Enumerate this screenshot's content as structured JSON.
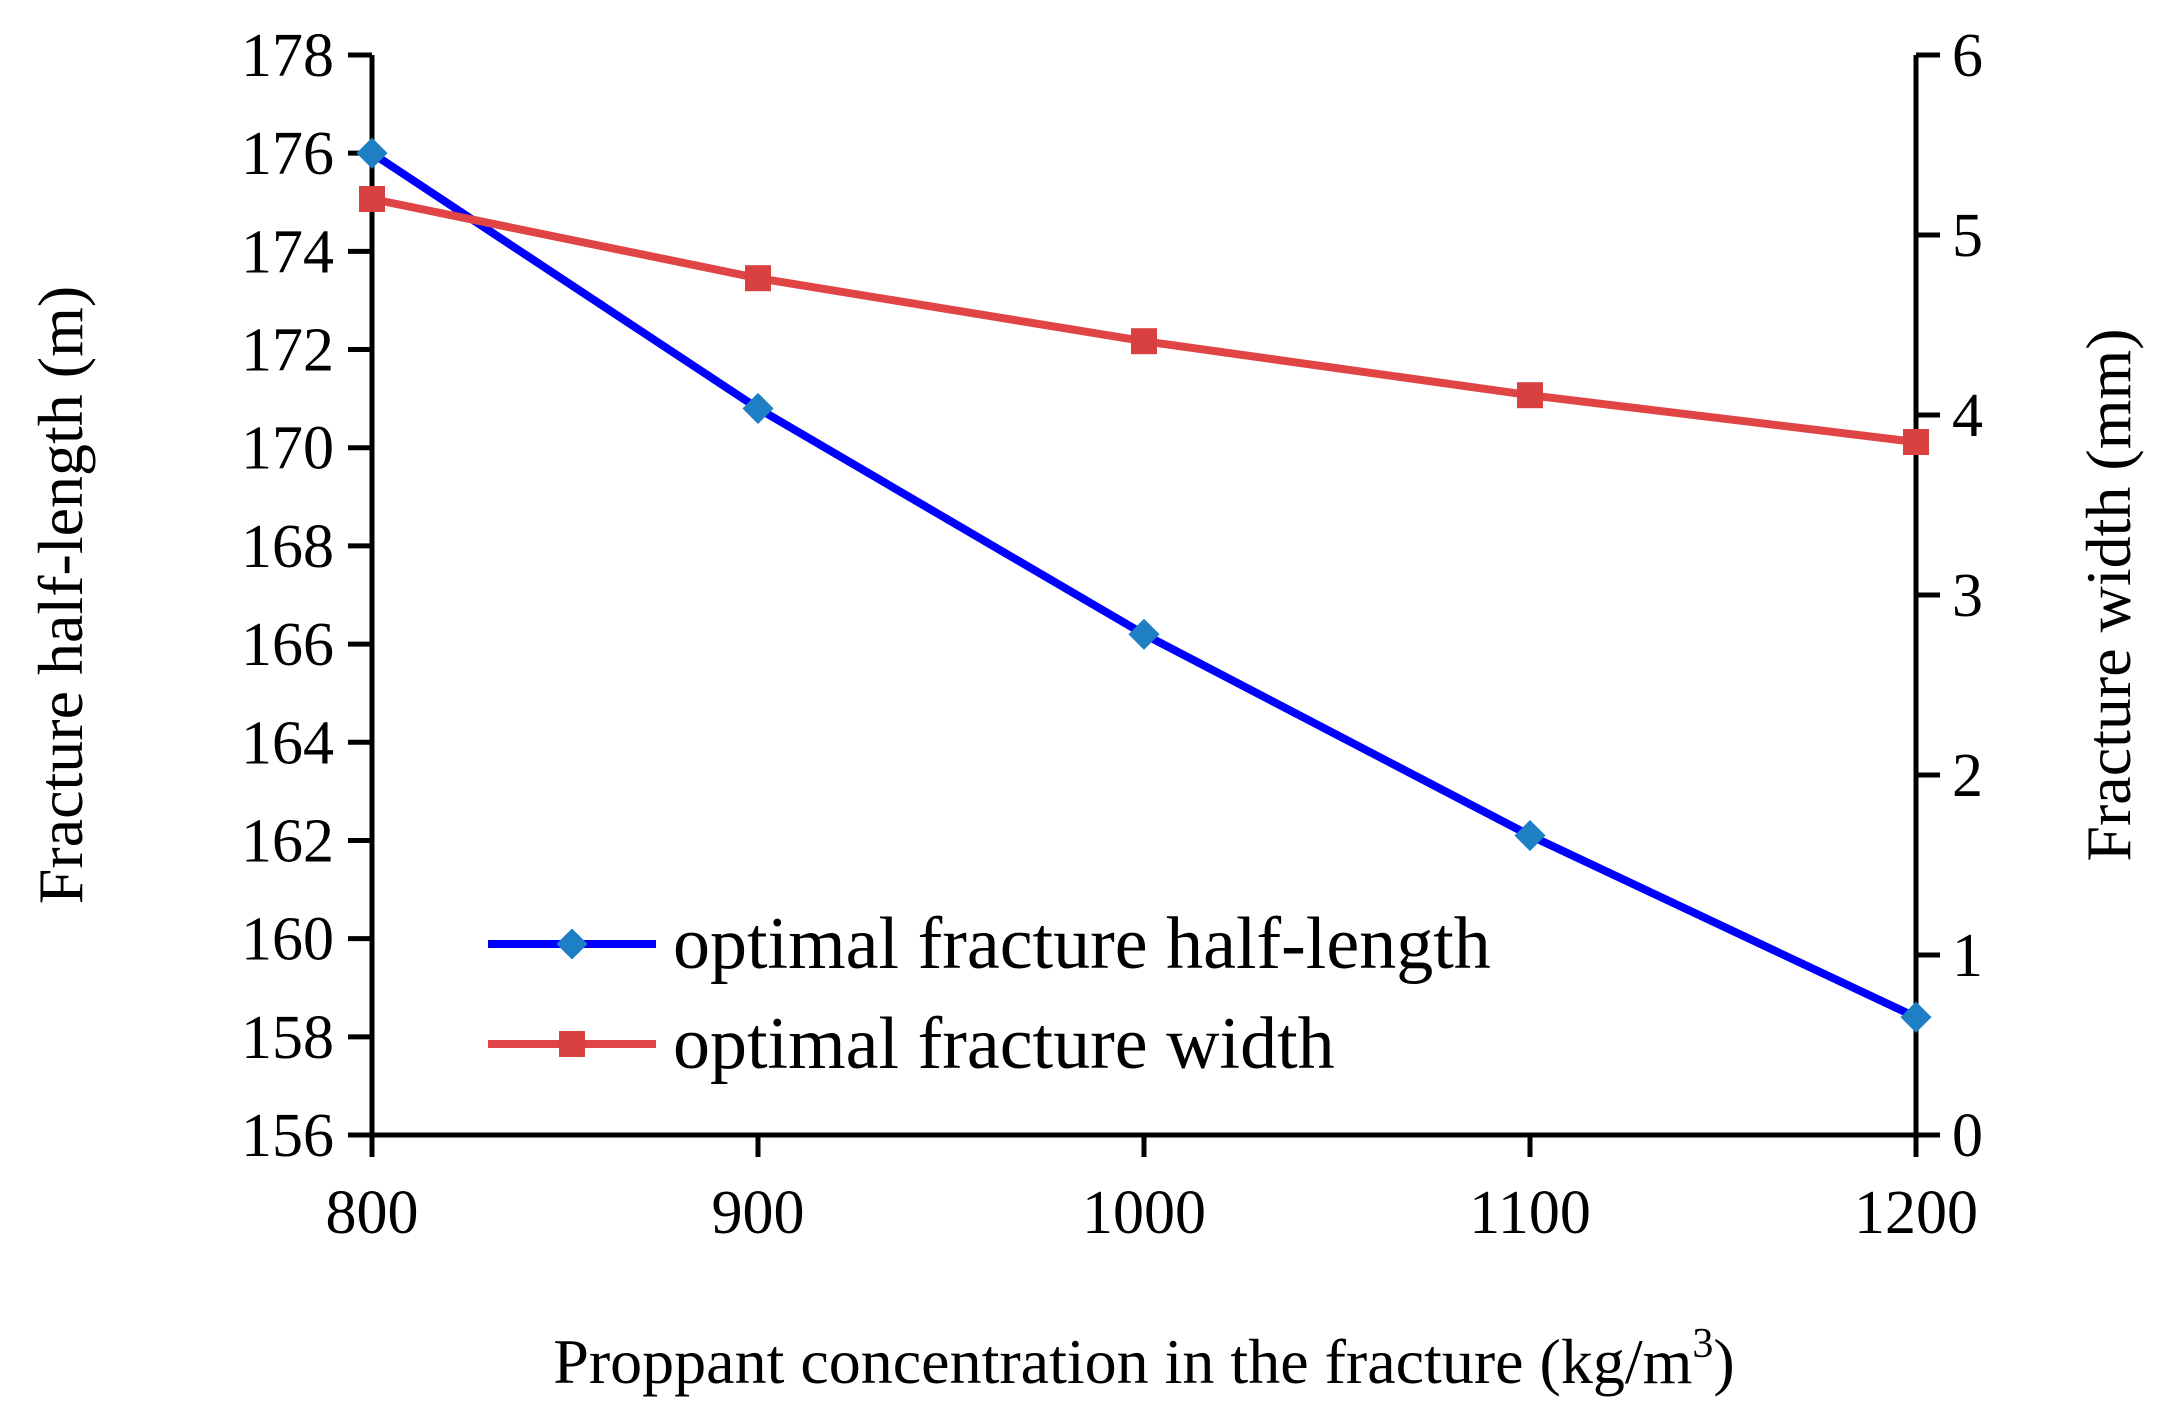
{
  "chart_data": {
    "type": "line",
    "title": "",
    "xlabel": "Proppant concentration in the fracture (kg/m",
    "xlabel_sup": "3",
    "xlabel_suffix": ")",
    "ylabel": "Fracture half-length (m)",
    "y2label": "Fracture width (mm)",
    "x": [
      800,
      900,
      1000,
      1100,
      1200
    ],
    "xlim": [
      800,
      1200
    ],
    "xticks": [
      "800",
      "900",
      "1000",
      "1100",
      "1200"
    ],
    "ylim": [
      156,
      178
    ],
    "yticks": [
      "156",
      "158",
      "160",
      "162",
      "164",
      "166",
      "168",
      "170",
      "172",
      "174",
      "176",
      "178"
    ],
    "y2lim": [
      0,
      6
    ],
    "y2ticks": [
      "0",
      "1",
      "2",
      "3",
      "4",
      "5",
      "6"
    ],
    "grid": false,
    "legend": "bottom-left",
    "series": [
      {
        "name": "optimal fracture half-length",
        "axis": "left",
        "values": [
          176.0,
          170.8,
          166.2,
          162.1,
          158.4
        ],
        "line_color": "#0000ff",
        "marker": "diamond",
        "marker_color": "#1f7fc4"
      },
      {
        "name": "optimal fracture width",
        "axis": "right",
        "values": [
          5.2,
          4.76,
          4.41,
          4.11,
          3.85
        ],
        "line_color": "#e04444",
        "marker": "square",
        "marker_color": "#d94040"
      }
    ]
  }
}
